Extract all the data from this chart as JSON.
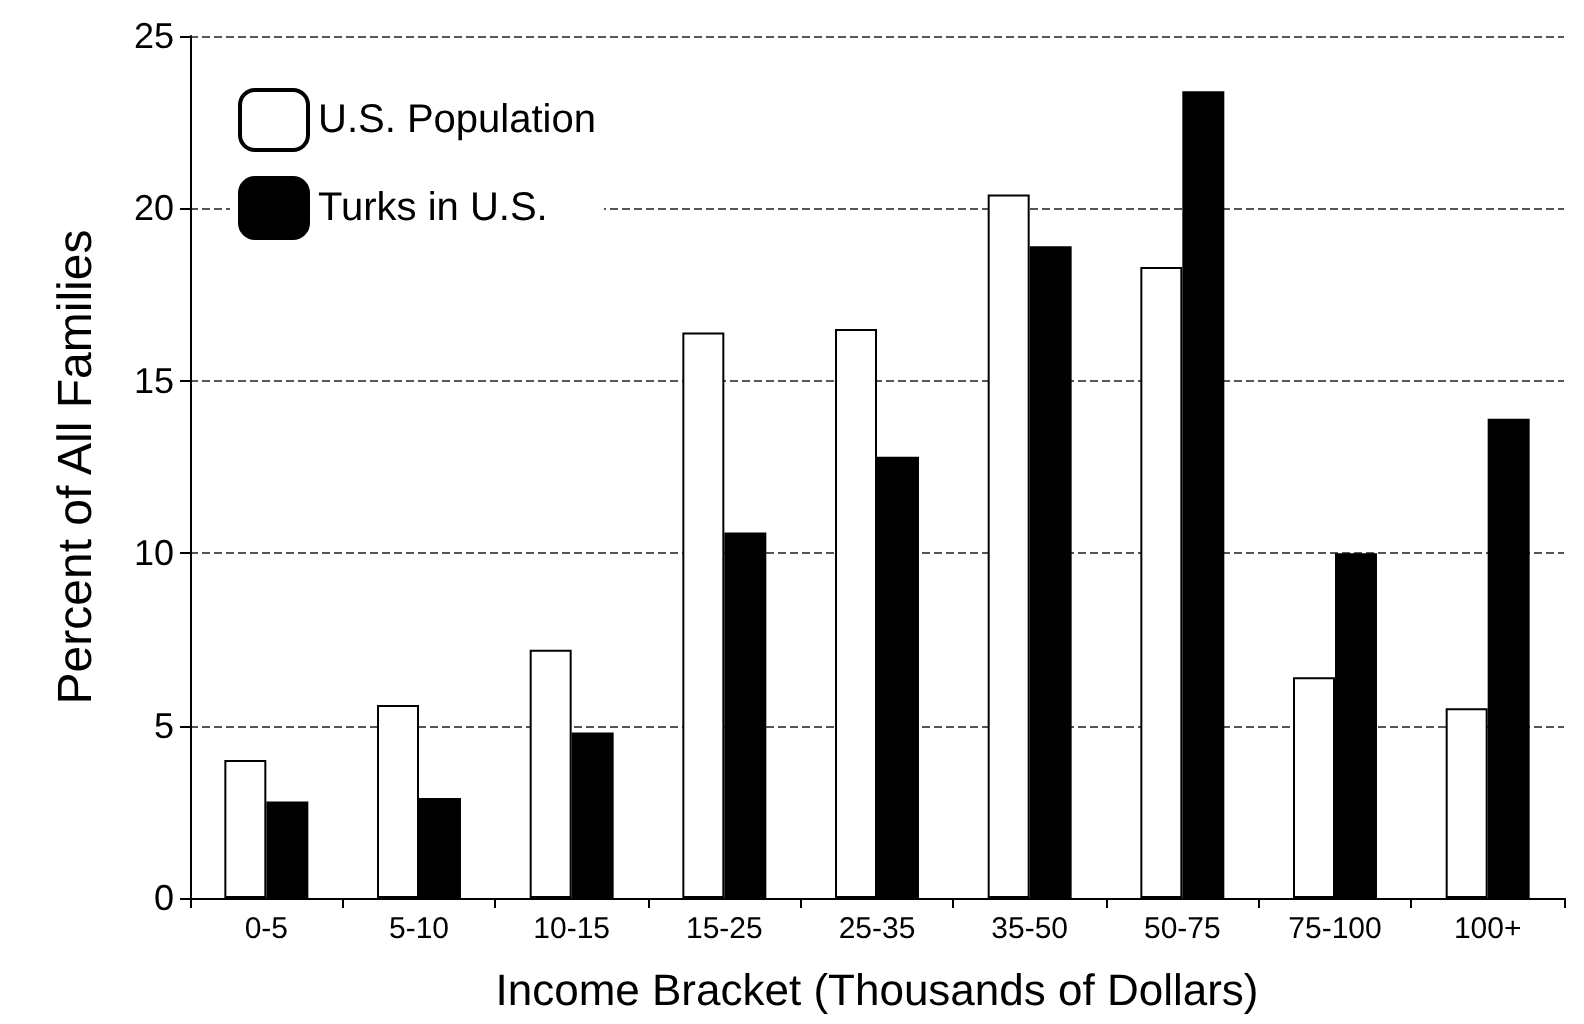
{
  "chart_data": {
    "type": "bar",
    "xlabel": "Income Bracket (Thousands of Dollars)",
    "ylabel": "Percent of All Families",
    "categories": [
      "0-5",
      "5-10",
      "10-15",
      "15-25",
      "25-35",
      "35-50",
      "50-75",
      "75-100",
      "100+"
    ],
    "series": [
      {
        "name": "U.S. Population",
        "color": "#ffffff",
        "values": [
          4.0,
          5.6,
          7.2,
          16.4,
          16.5,
          20.4,
          18.3,
          6.4,
          5.5
        ]
      },
      {
        "name": "Turks in U.S.",
        "color": "#000000",
        "values": [
          2.8,
          2.9,
          4.8,
          10.6,
          12.8,
          18.9,
          23.4,
          10.0,
          13.9
        ]
      }
    ],
    "ylim": [
      0,
      25
    ],
    "yticks": [
      0,
      5,
      10,
      15,
      20,
      25
    ],
    "grid": "y",
    "legend": "top left"
  }
}
